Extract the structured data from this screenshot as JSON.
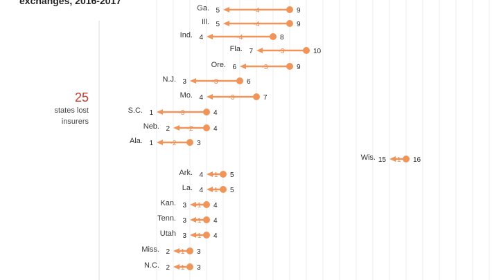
{
  "chart_data": {
    "type": "arrow-dot",
    "subtitle": "exchanges, 2016-2017",
    "annotation": {
      "value": "25",
      "text": "states lost insurers"
    },
    "colors": {
      "arrow": "#f0955a",
      "annotation": "#c0392b"
    },
    "grid": true,
    "rows": [
      {
        "state": "Ga.",
        "y2016": 9,
        "y2017": 5,
        "change": "-4"
      },
      {
        "state": "Ill.",
        "y2016": 9,
        "y2017": 5,
        "change": "-4"
      },
      {
        "state": "Ind.",
        "y2016": 8,
        "y2017": 4,
        "change": "-4"
      },
      {
        "state": "Fla.",
        "y2016": 10,
        "y2017": 7,
        "change": "-3"
      },
      {
        "state": "Ore.",
        "y2016": 9,
        "y2017": 6,
        "change": "-3"
      },
      {
        "state": "N.J.",
        "y2016": 6,
        "y2017": 3,
        "change": "-3"
      },
      {
        "state": "Mo.",
        "y2016": 7,
        "y2017": 4,
        "change": "-3"
      },
      {
        "state": "S.C.",
        "y2016": 4,
        "y2017": 1,
        "change": "-3"
      },
      {
        "state": "Neb.",
        "y2016": 4,
        "y2017": 2,
        "change": "-2"
      },
      {
        "state": "Ala.",
        "y2016": 3,
        "y2017": 1,
        "change": "-2"
      },
      {
        "state": "Wis.",
        "y2016": 16,
        "y2017": 15,
        "change": "-1"
      },
      {
        "state": "Ark.",
        "y2016": 5,
        "y2017": 4,
        "change": "-1"
      },
      {
        "state": "La.",
        "y2016": 5,
        "y2017": 4,
        "change": "-1"
      },
      {
        "state": "Kan.",
        "y2016": 4,
        "y2017": 3,
        "change": "-1"
      },
      {
        "state": "Tenn.",
        "y2016": 4,
        "y2017": 3,
        "change": "-1"
      },
      {
        "state": "Utah",
        "y2016": 4,
        "y2017": 3,
        "change": "-1"
      },
      {
        "state": "Miss.",
        "y2016": 3,
        "y2017": 2,
        "change": "-1"
      },
      {
        "state": "N.C.",
        "y2016": 3,
        "y2017": 2,
        "change": "-1"
      }
    ]
  }
}
